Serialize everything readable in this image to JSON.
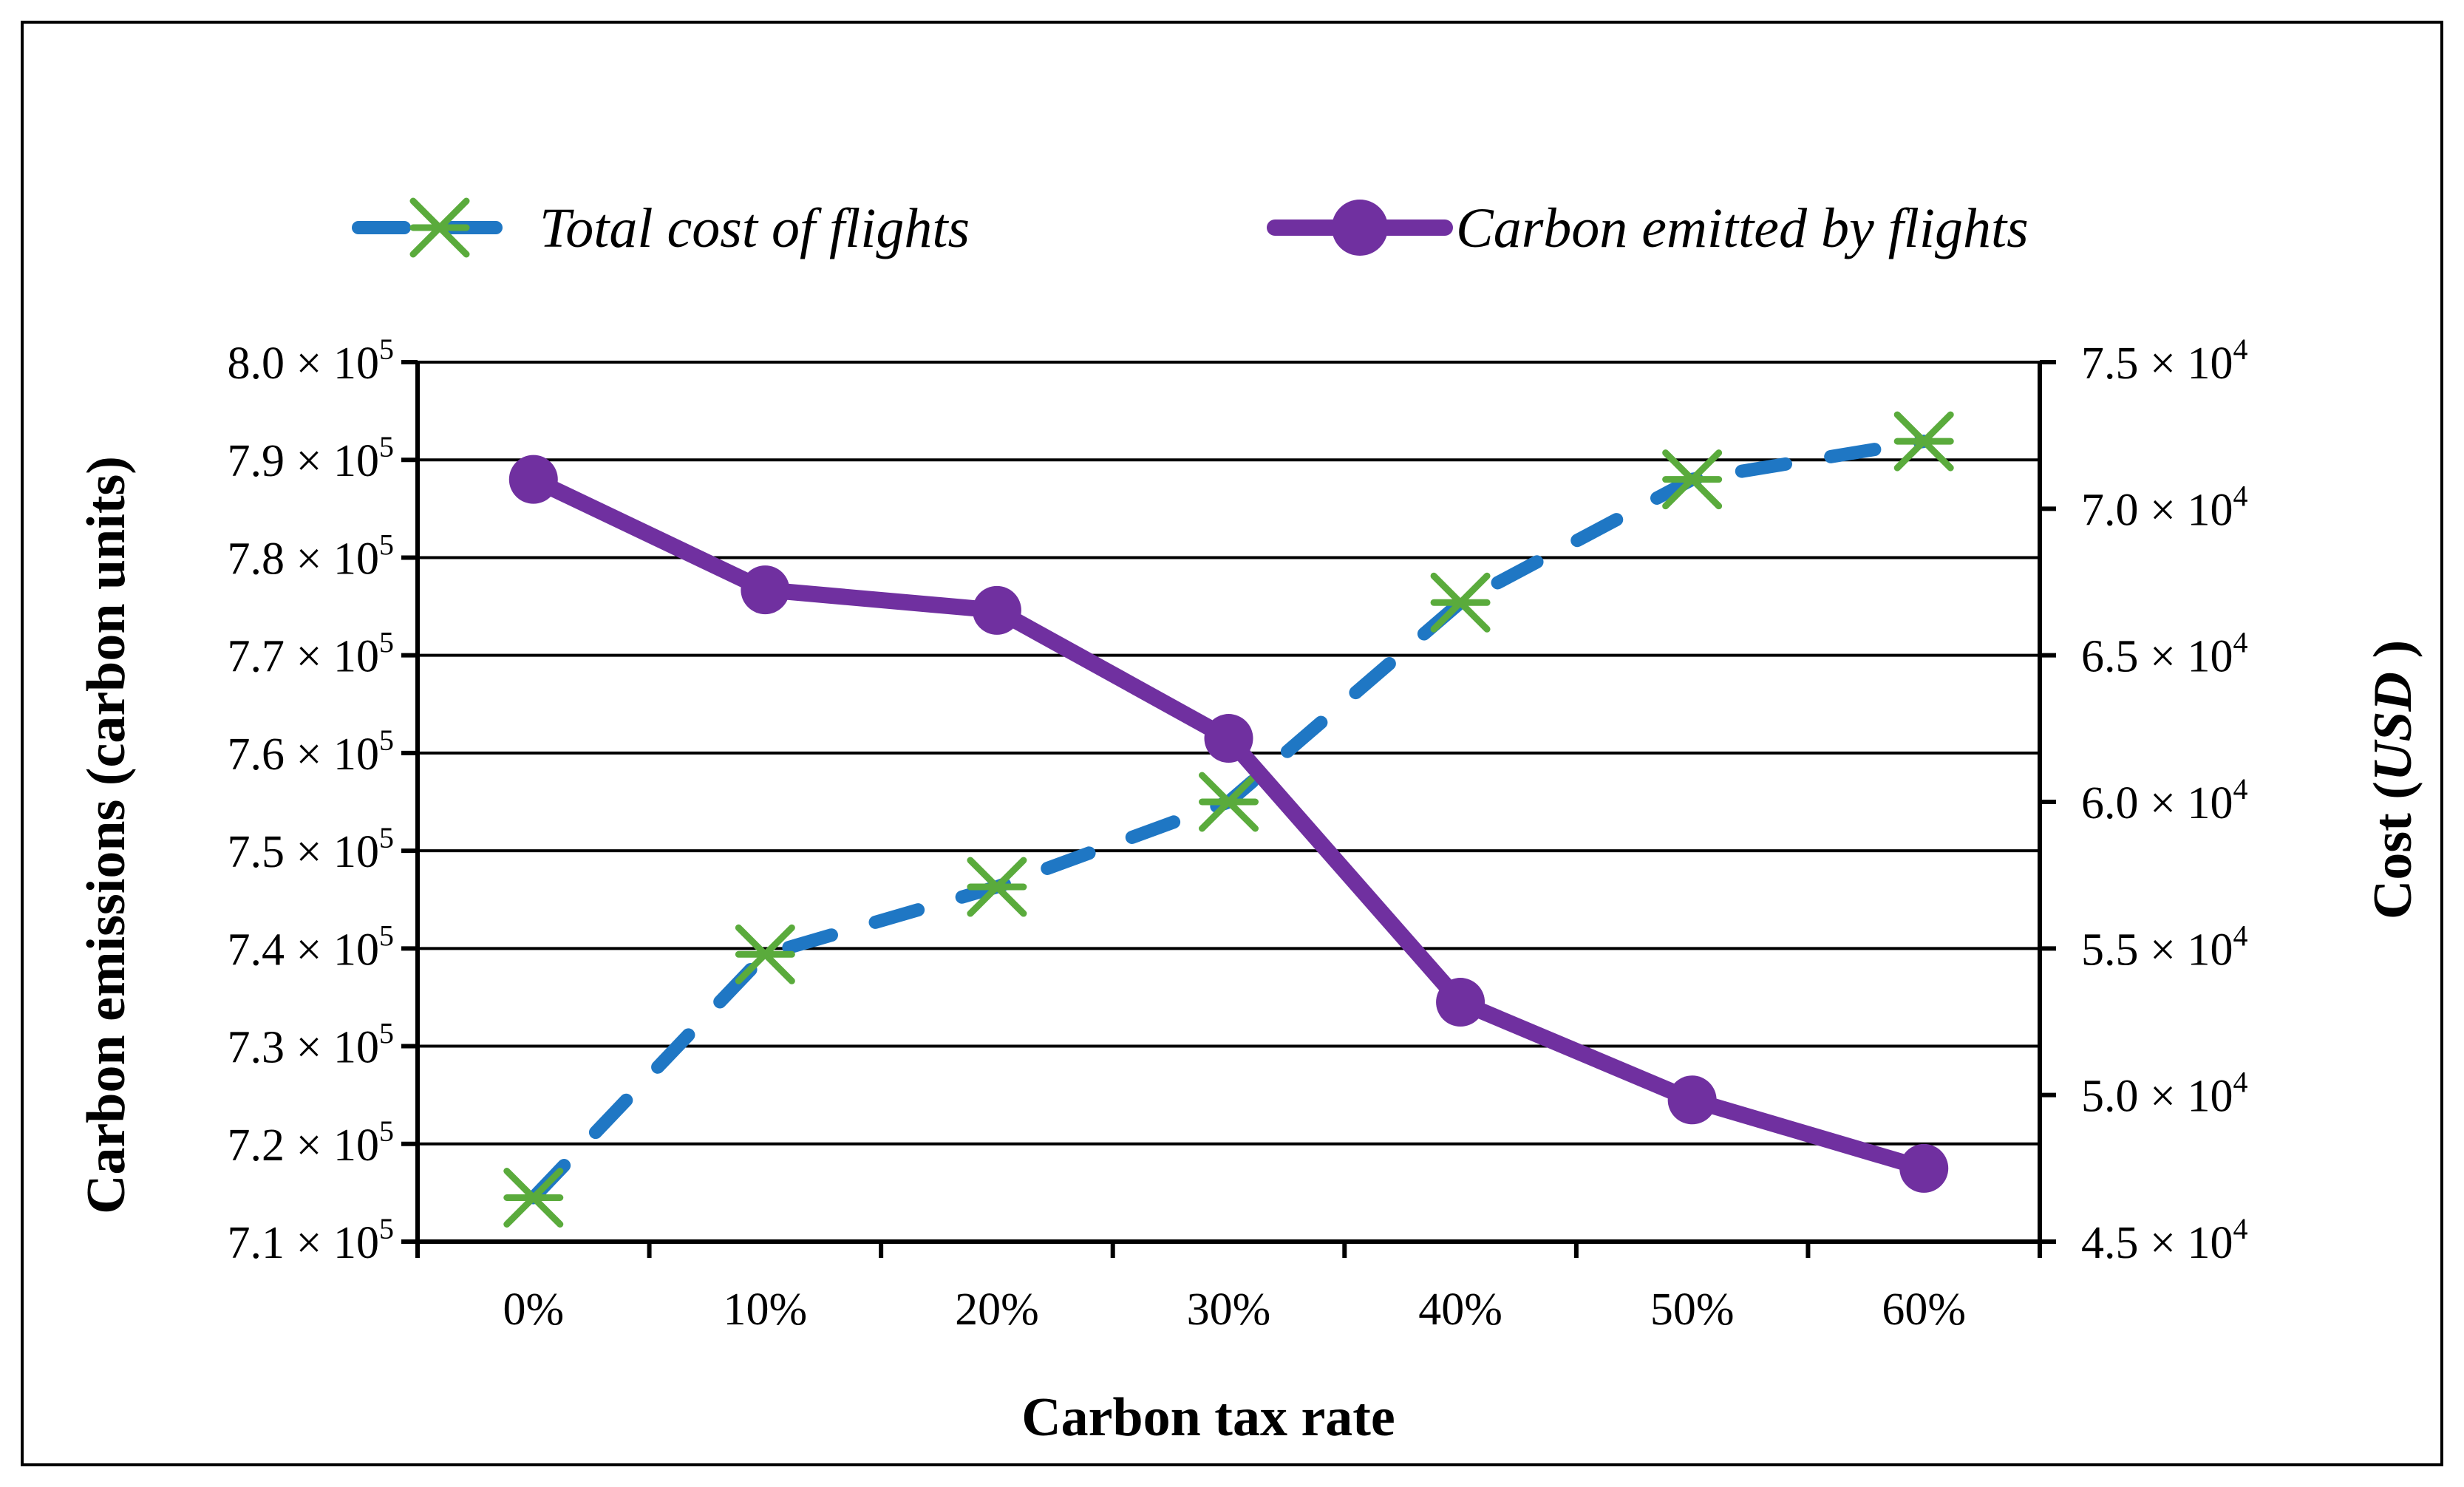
{
  "chart_data": {
    "type": "line",
    "title": "",
    "categories": [
      "0%",
      "10%",
      "20%",
      "30%",
      "40%",
      "50%",
      "60%"
    ],
    "xlabel": "Carbon tax rate",
    "ylabel_left": "Carbon emissions (carbon units)",
    "ylabel_right_prefix": "Cost (",
    "ylabel_right_unit": "USD",
    "ylabel_right_suffix": " )",
    "ylim_left": [
      710000,
      800000
    ],
    "ylim_right": [
      45000,
      75000
    ],
    "yticks_left": [
      {
        "mantissa": "7.1",
        "exp": "5",
        "value": 710000
      },
      {
        "mantissa": "7.2",
        "exp": "5",
        "value": 720000
      },
      {
        "mantissa": "7.3",
        "exp": "5",
        "value": 730000
      },
      {
        "mantissa": "7.4",
        "exp": "5",
        "value": 740000
      },
      {
        "mantissa": "7.5",
        "exp": "5",
        "value": 750000
      },
      {
        "mantissa": "7.6",
        "exp": "5",
        "value": 760000
      },
      {
        "mantissa": "7.7",
        "exp": "5",
        "value": 770000
      },
      {
        "mantissa": "7.8",
        "exp": "5",
        "value": 780000
      },
      {
        "mantissa": "7.9",
        "exp": "5",
        "value": 790000
      },
      {
        "mantissa": "8.0",
        "exp": "5",
        "value": 800000
      }
    ],
    "yticks_right": [
      {
        "mantissa": "4.5",
        "exp": "4",
        "value": 45000
      },
      {
        "mantissa": "5.0",
        "exp": "4",
        "value": 50000
      },
      {
        "mantissa": "5.5",
        "exp": "4",
        "value": 55000
      },
      {
        "mantissa": "6.0",
        "exp": "4",
        "value": 60000
      },
      {
        "mantissa": "6.5",
        "exp": "4",
        "value": 65000
      },
      {
        "mantissa": "7.0",
        "exp": "4",
        "value": 70000
      },
      {
        "mantissa": "7.5",
        "exp": "4",
        "value": 75000
      }
    ],
    "grid": true,
    "legend_position": "top",
    "series": [
      {
        "name": "Total cost of flights",
        "axis": "right",
        "line_style": "dashed",
        "marker": "asterisk",
        "line_color": "#1f77c4",
        "marker_color": "#5aab3c",
        "values": [
          46500,
          54800,
          57100,
          60000,
          66800,
          71000,
          72300
        ]
      },
      {
        "name": "Carbon emitted by flights",
        "axis": "left",
        "line_style": "solid",
        "marker": "circle",
        "line_color": "#7030a0",
        "marker_color": "#7030a0",
        "values": [
          788000,
          776700,
          774600,
          761500,
          734500,
          724500,
          717500
        ]
      }
    ]
  }
}
